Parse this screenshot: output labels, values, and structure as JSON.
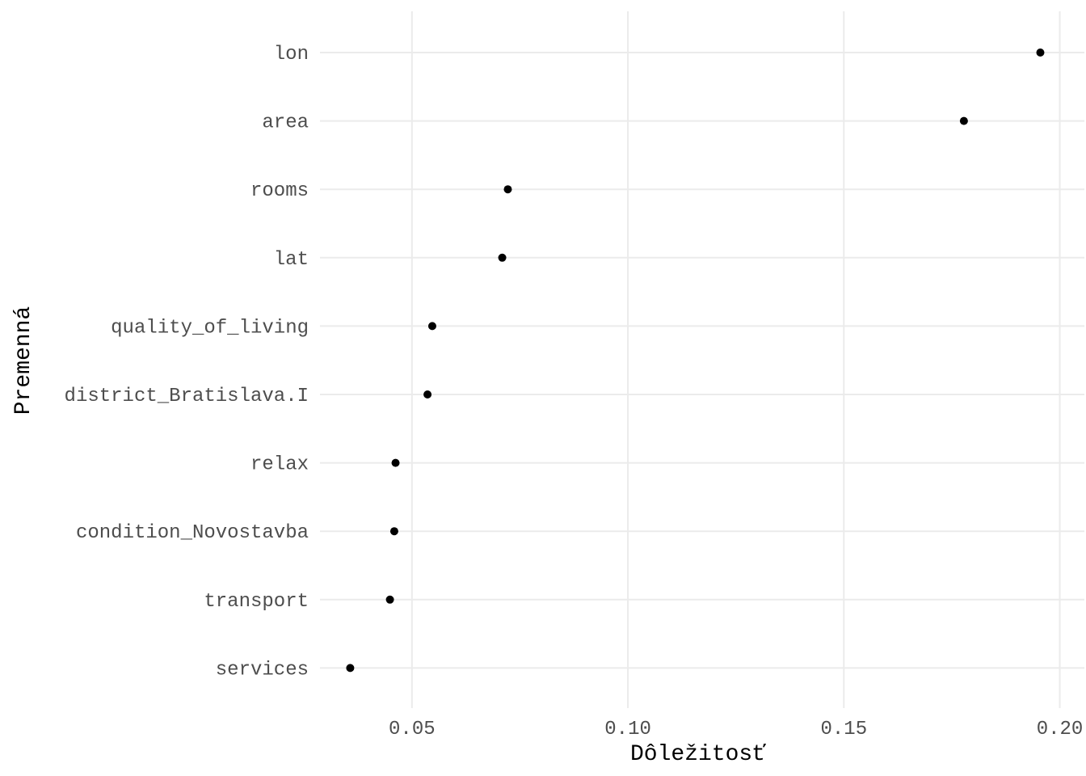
{
  "chart_data": {
    "type": "scatter",
    "xlabel": "Dôležitosť",
    "ylabel": "Premenná",
    "xlim": [
      0.0287,
      0.2057
    ],
    "x_ticks": [
      0.05,
      0.1,
      0.15,
      0.2
    ],
    "x_tick_labels": [
      "0.05",
      "0.10",
      "0.15",
      "0.20"
    ],
    "categories": [
      "lon",
      "area",
      "rooms",
      "lat",
      "quality_of_living",
      "district_Bratislava.I",
      "relax",
      "condition_Novostavba",
      "transport",
      "services"
    ],
    "values": [
      0.1955,
      0.1778,
      0.0722,
      0.0709,
      0.0547,
      0.0536,
      0.0462,
      0.0459,
      0.0449,
      0.0357
    ],
    "grid": true,
    "legend": "none",
    "point_color": "#000000"
  }
}
